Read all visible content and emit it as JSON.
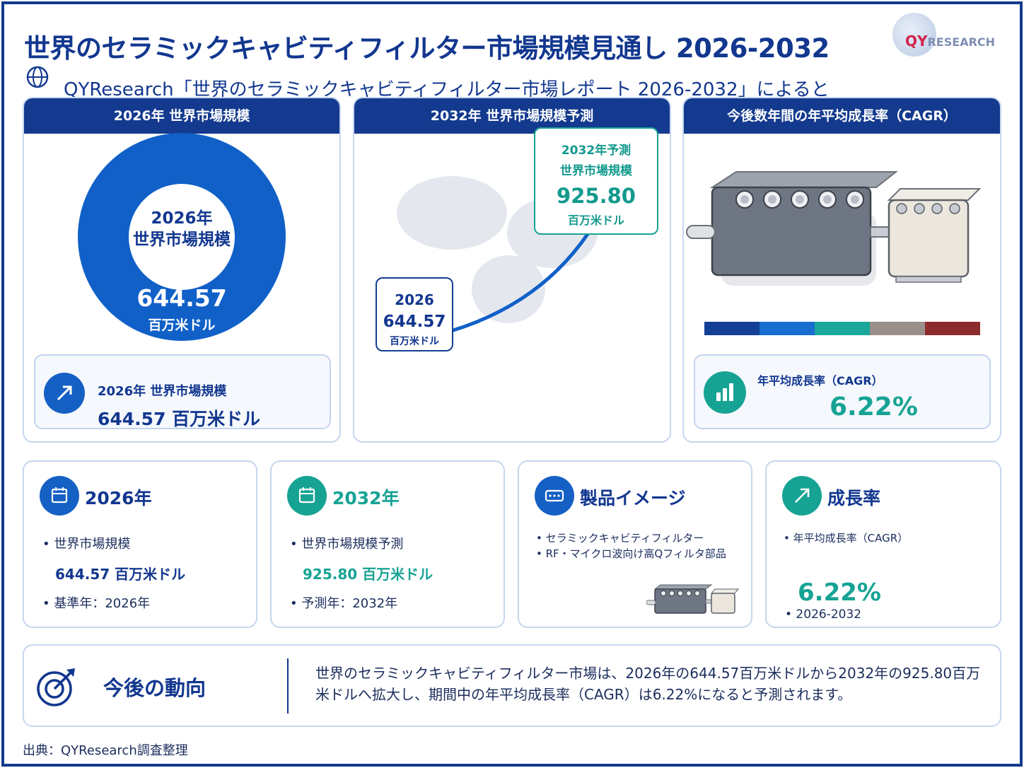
{
  "header": {
    "title": "世界のセラミックキャビティフィルター市場規模見通し 2026-2032",
    "subtitle": "QYResearch「世界のセラミックキャビティフィルター市場レポート 2026-2032」によると",
    "logo_text_main": "QY",
    "logo_text_rest": "RESEARCH"
  },
  "panel_market_2026": {
    "heading": "2026年 世界市場規模",
    "donut_label_line1": "2026年",
    "donut_label_line2": "世界市場規模",
    "donut_value": "644.57",
    "donut_unit": "百万米ドル",
    "card_label": "2026年 世界市場規模",
    "card_value": "644.57 百万米ドル"
  },
  "panel_forecast_2032": {
    "heading": "2032年 世界市場規模予測",
    "start_year": "2026",
    "start_value": "644.57",
    "start_unit": "百万米ドル",
    "end_label_line1": "2032年予測",
    "end_label_line2": "世界市場規模",
    "end_value": "925.80",
    "end_unit": "百万米ドル"
  },
  "panel_cagr": {
    "heading": "今後数年間の年平均成長率（CAGR）",
    "card_label": "年平均成長率（CAGR）",
    "card_value": "6.22%",
    "color_bar": [
      "#133f96",
      "#1a6ed0",
      "#19a89a",
      "#9a8f8b",
      "#8c2b2b"
    ]
  },
  "cards": {
    "year_2026": {
      "title": "2026年",
      "bullet1": "• 世界市場規模",
      "value": "644.57 百万米ドル",
      "bullet2": "• 基準年：2026年"
    },
    "year_2032": {
      "title": "2032年",
      "bullet1": "• 世界市場規模予測",
      "value": "925.80 百万米ドル",
      "bullet2": "• 予測年：2032年"
    },
    "product": {
      "title": "製品イメージ",
      "bullet1": "• セラミックキャビティフィルター",
      "bullet2": "• RF・マイクロ波向け高Qフィルタ部品"
    },
    "growth": {
      "title": "成長率",
      "bullet1": "• 年平均成長率（CAGR）",
      "value": "6.22%",
      "bullet2": "• 2026-2032"
    }
  },
  "outlook": {
    "title": "今後の動向",
    "text": "世界のセラミックキャビティフィルター市場は、2026年の644.57百万米ドルから2032年の925.80百万米ドルへ拡大し、期間中の年平均成長率（CAGR）は6.22%になると予測されます。"
  },
  "footer": {
    "source": "出典：QYResearch調査整理"
  },
  "colors": {
    "navy": "#12378f",
    "blue": "#1060c8",
    "teal": "#17a394"
  }
}
